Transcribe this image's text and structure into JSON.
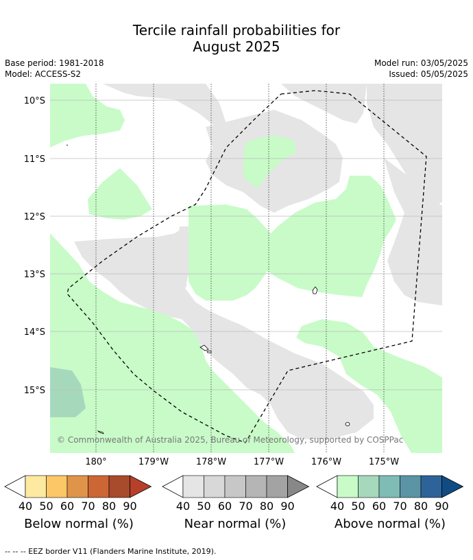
{
  "title_line1": "Tercile rainfall probabilities for",
  "title_line2": "August 2025",
  "meta": {
    "base_period": "Base period: 1981-2018",
    "model": "Model: ACCESS-S2",
    "model_run": "Model run: 03/05/2025",
    "issued": "Issued: 05/05/2025"
  },
  "map": {
    "lat_labels": [
      "10°S",
      "11°S",
      "12°S",
      "13°S",
      "14°S",
      "15°S"
    ],
    "lon_labels": [
      "180°",
      "179°W",
      "178°W",
      "177°W",
      "176°W",
      "175°W"
    ],
    "credit": "© Commonwealth of Australia 2025, Bureau of Meteorology, supported by COSPPac"
  },
  "legends": [
    {
      "label": "Below normal (%)",
      "colors": [
        "#fde9a0",
        "#fcc766",
        "#e0944a",
        "#cc6634",
        "#a84a2c",
        "#b7402a"
      ],
      "ticks": [
        "40",
        "50",
        "60",
        "70",
        "80",
        "90"
      ]
    },
    {
      "label": "Near normal (%)",
      "colors": [
        "#e5e5e5",
        "#d8d8d8",
        "#c7c7c7",
        "#b5b5b5",
        "#a3a3a3",
        "#888888"
      ],
      "ticks": [
        "40",
        "50",
        "60",
        "70",
        "80",
        "90"
      ]
    },
    {
      "label": "Above normal (%)",
      "colors": [
        "#c8fbc8",
        "#a6d9bc",
        "#7fbcb6",
        "#5a94a5",
        "#2d6398",
        "#104c83"
      ],
      "ticks": [
        "40",
        "50",
        "60",
        "70",
        "80",
        "90"
      ]
    }
  ],
  "footnote": "--  --  -- EEZ border V11 (Flanders Marine Institute, 2019)."
}
